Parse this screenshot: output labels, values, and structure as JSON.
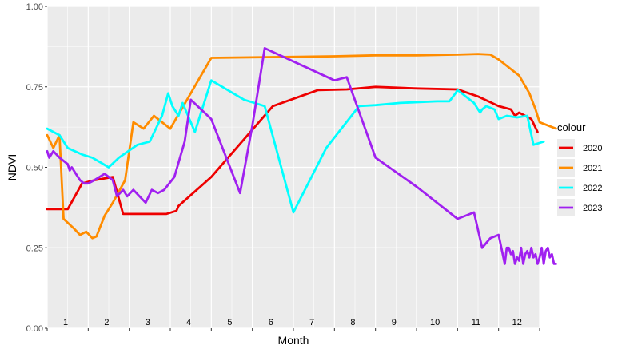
{
  "chart_data": {
    "type": "line",
    "xlabel": "Month",
    "ylabel": "NDVI",
    "xlim": [
      0,
      12
    ],
    "ylim": [
      0,
      1
    ],
    "x_tick_labels": [
      "1",
      "2",
      "3",
      "4",
      "5",
      "6",
      "7",
      "8",
      "9",
      "10",
      "11",
      "12"
    ],
    "y_ticks": [
      0,
      0.25,
      0.5,
      0.75,
      1
    ],
    "y_tick_labels": [
      "0.00",
      "0.25",
      "0.50",
      "0.75",
      "1.00"
    ],
    "grid": true,
    "panel_background": "#ebebeb",
    "grid_color": "#ffffff",
    "legend": {
      "title": "colour",
      "position": "right"
    },
    "series": [
      {
        "name": "2020",
        "color": "#ee0000",
        "x": [
          0.0,
          0.5,
          0.85,
          1.15,
          1.6,
          1.85,
          2.5,
          2.9,
          3.15,
          3.2,
          4.0,
          5.5,
          6.6,
          7.3,
          8.0,
          9.0,
          10.0,
          10.5,
          11.0,
          11.3,
          11.4,
          11.5,
          11.8,
          11.95
        ],
        "y": [
          0.37,
          0.37,
          0.45,
          0.46,
          0.47,
          0.355,
          0.355,
          0.355,
          0.365,
          0.38,
          0.47,
          0.69,
          0.74,
          0.742,
          0.75,
          0.745,
          0.742,
          0.72,
          0.69,
          0.68,
          0.66,
          0.67,
          0.65,
          0.61
        ]
      },
      {
        "name": "2021",
        "color": "#ff8c00",
        "x": [
          0.0,
          0.15,
          0.3,
          0.4,
          0.65,
          0.8,
          0.95,
          1.1,
          1.2,
          1.4,
          1.6,
          1.9,
          2.1,
          2.35,
          2.6,
          3.0,
          4.0,
          7.0,
          8.0,
          9.0,
          10.0,
          10.5,
          10.8,
          11.0,
          11.5,
          11.75,
          11.9,
          12.0,
          12.4
        ],
        "y": [
          0.6,
          0.56,
          0.6,
          0.34,
          0.31,
          0.29,
          0.3,
          0.28,
          0.285,
          0.35,
          0.39,
          0.46,
          0.64,
          0.62,
          0.66,
          0.62,
          0.84,
          0.845,
          0.848,
          0.848,
          0.85,
          0.852,
          0.85,
          0.835,
          0.785,
          0.73,
          0.68,
          0.64,
          0.62
        ]
      },
      {
        "name": "2022",
        "color": "#00ffff",
        "x": [
          0.0,
          0.3,
          0.5,
          0.85,
          1.1,
          1.5,
          1.75,
          2.2,
          2.5,
          2.8,
          2.95,
          3.05,
          3.2,
          3.3,
          3.6,
          4.0,
          4.8,
          5.3,
          6.0,
          6.8,
          7.6,
          8.0,
          8.6,
          9.5,
          9.8,
          9.95,
          10.0,
          10.2,
          10.4,
          10.5,
          10.55,
          10.6,
          10.7,
          10.9,
          11.0,
          11.2,
          11.45,
          11.7,
          11.85,
          12.1
        ],
        "y": [
          0.62,
          0.6,
          0.56,
          0.54,
          0.53,
          0.5,
          0.53,
          0.57,
          0.58,
          0.66,
          0.73,
          0.69,
          0.66,
          0.7,
          0.61,
          0.77,
          0.71,
          0.69,
          0.36,
          0.56,
          0.69,
          0.693,
          0.7,
          0.705,
          0.705,
          0.73,
          0.74,
          0.72,
          0.7,
          0.68,
          0.67,
          0.68,
          0.69,
          0.68,
          0.65,
          0.66,
          0.655,
          0.66,
          0.57,
          0.58
        ]
      },
      {
        "name": "2023",
        "color": "#a020f0",
        "x": [
          0.0,
          0.05,
          0.15,
          0.3,
          0.5,
          0.55,
          0.6,
          0.7,
          0.8,
          0.9,
          1.0,
          1.15,
          1.4,
          1.6,
          1.7,
          1.85,
          1.95,
          2.1,
          2.25,
          2.4,
          2.55,
          2.7,
          2.85,
          3.1,
          3.35,
          3.5,
          4.0,
          4.7,
          5.0,
          5.3,
          7.0,
          7.3,
          8.0,
          9.0,
          10.0,
          10.2,
          10.4,
          10.6,
          10.8,
          11.0,
          11.15,
          11.2,
          11.25,
          11.3,
          11.35,
          11.4,
          11.45,
          11.5,
          11.55,
          11.6,
          11.65,
          11.7,
          11.75,
          11.8,
          11.85,
          11.9,
          11.95,
          12.0,
          12.05,
          12.1,
          12.15,
          12.2,
          12.25,
          12.3,
          12.35,
          12.4
        ],
        "y": [
          0.55,
          0.53,
          0.55,
          0.53,
          0.51,
          0.49,
          0.5,
          0.48,
          0.46,
          0.45,
          0.45,
          0.46,
          0.48,
          0.46,
          0.41,
          0.43,
          0.41,
          0.43,
          0.41,
          0.39,
          0.43,
          0.42,
          0.43,
          0.47,
          0.58,
          0.71,
          0.65,
          0.42,
          0.63,
          0.87,
          0.77,
          0.78,
          0.53,
          0.44,
          0.34,
          0.35,
          0.36,
          0.25,
          0.28,
          0.29,
          0.2,
          0.25,
          0.25,
          0.23,
          0.24,
          0.2,
          0.22,
          0.21,
          0.25,
          0.2,
          0.23,
          0.24,
          0.22,
          0.25,
          0.22,
          0.23,
          0.2,
          0.22,
          0.25,
          0.2,
          0.24,
          0.25,
          0.22,
          0.23,
          0.2,
          0.2
        ]
      }
    ]
  }
}
